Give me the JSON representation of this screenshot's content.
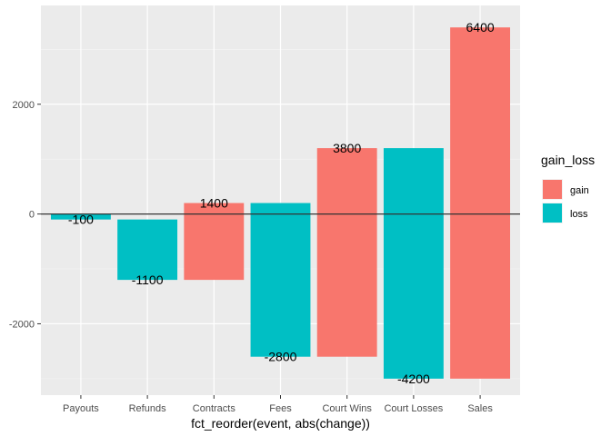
{
  "chart_data": {
    "type": "bar",
    "subtype": "waterfall",
    "xlabel": "fct_reorder(event, abs(change))",
    "ylabel": "",
    "ylim": [
      -3300,
      3800
    ],
    "yticks": [
      -2000,
      0,
      2000
    ],
    "yticklabels": [
      "-2000",
      "0",
      "2000"
    ],
    "grid": true,
    "baseline": 0,
    "categories": [
      "Payouts",
      "Refunds",
      "Contracts",
      "Fees",
      "Court Wins",
      "Court Losses",
      "Sales"
    ],
    "bars": [
      {
        "event": "Payouts",
        "start": 0,
        "end": -100,
        "change": -100,
        "label": "-100",
        "gain_loss": "loss"
      },
      {
        "event": "Refunds",
        "start": -100,
        "end": -1200,
        "change": -1100,
        "label": "-1100",
        "gain_loss": "loss"
      },
      {
        "event": "Contracts",
        "start": -1200,
        "end": 200,
        "change": 1400,
        "label": "1400",
        "gain_loss": "gain"
      },
      {
        "event": "Fees",
        "start": 200,
        "end": -2600,
        "change": -2800,
        "label": "-2800",
        "gain_loss": "loss"
      },
      {
        "event": "Court Wins",
        "start": -2600,
        "end": 1200,
        "change": 3800,
        "label": "3800",
        "gain_loss": "gain"
      },
      {
        "event": "Court Losses",
        "start": 1200,
        "end": -3000,
        "change": -4200,
        "label": "-4200",
        "gain_loss": "loss"
      },
      {
        "event": "Sales",
        "start": -3000,
        "end": 3400,
        "change": 6400,
        "label": "6400",
        "gain_loss": "gain"
      }
    ],
    "legend": {
      "title": "gain_loss",
      "placement": "right",
      "items": [
        {
          "key": "gain",
          "label": "gain",
          "color": "#F8766D"
        },
        {
          "key": "loss",
          "label": "loss",
          "color": "#00BFC4"
        }
      ]
    },
    "colors": {
      "panel_background": "#EBEBEB",
      "grid_major": "#FFFFFF",
      "grid_minor": "#F5F5F5",
      "baseline": "#333333",
      "gain": "#F8766D",
      "loss": "#00BFC4"
    }
  }
}
